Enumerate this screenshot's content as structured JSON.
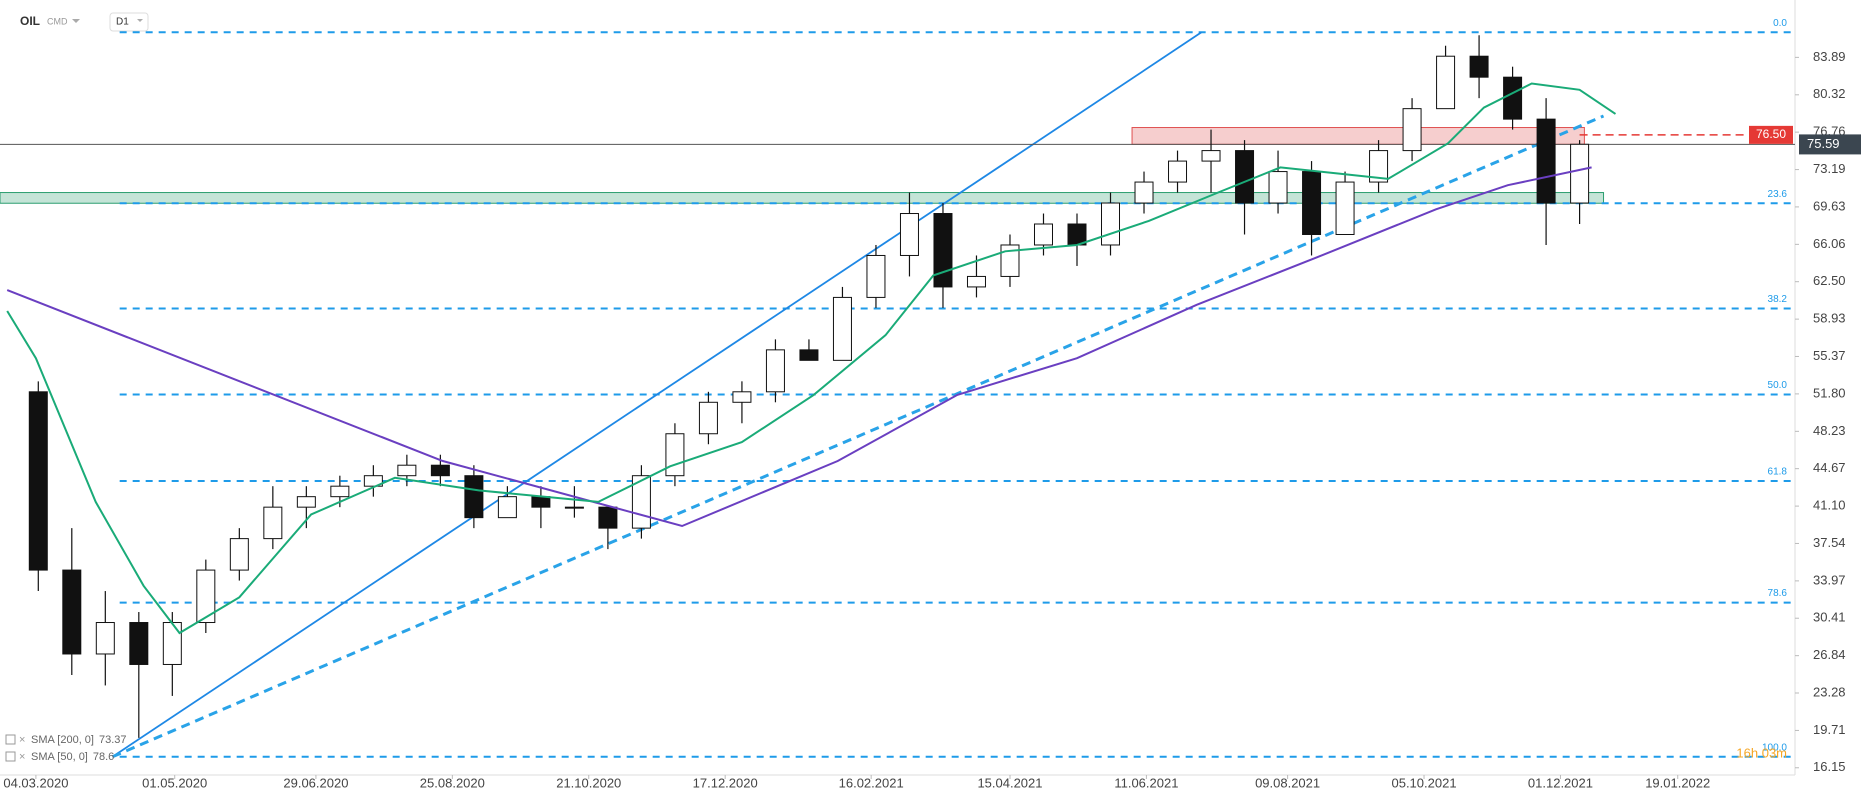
{
  "chart_data": {
    "type": "candlestick",
    "symbol": "OIL",
    "market": "CMD",
    "interval": "D1",
    "countdown": "16h 03m",
    "x": [
      "05.03.2020",
      "19.03.2020",
      "02.04.2020",
      "16.04.2020",
      "30.04.2020",
      "14.05.2020",
      "28.05.2020",
      "11.06.2020",
      "25.06.2020",
      "09.07.2020",
      "23.07.2020",
      "06.08.2020",
      "20.08.2020",
      "03.09.2020",
      "17.09.2020",
      "01.10.2020",
      "15.10.2020",
      "29.10.2020",
      "12.11.2020",
      "26.11.2020",
      "10.12.2020",
      "24.12.2020",
      "07.01.2021",
      "21.01.2021",
      "04.02.2021",
      "18.02.2021",
      "04.03.2021",
      "18.03.2021",
      "01.04.2021",
      "15.04.2021",
      "29.04.2021",
      "13.05.2021",
      "27.05.2021",
      "10.06.2021",
      "24.06.2021",
      "08.07.2021",
      "22.07.2021",
      "05.08.2021",
      "19.08.2021",
      "02.09.2021",
      "16.09.2021",
      "30.09.2021",
      "14.10.2021",
      "28.10.2021",
      "11.11.2021",
      "25.11.2021",
      "09.12.2021"
    ],
    "open": [
      52,
      35,
      27,
      30,
      26,
      30,
      35,
      38,
      41,
      42,
      43,
      44,
      45,
      44,
      40,
      42,
      41,
      41,
      39,
      44,
      48,
      51,
      52,
      56,
      55,
      61,
      65,
      69,
      62,
      63,
      66,
      68,
      66,
      70,
      72,
      74,
      75,
      70,
      73,
      67,
      72,
      75,
      79,
      84,
      82,
      78,
      70
    ],
    "high": [
      53,
      39,
      33,
      31,
      31,
      36,
      39,
      43,
      43,
      44,
      45,
      46,
      46,
      45,
      43,
      43,
      43,
      41,
      45,
      49,
      52,
      53,
      57,
      57,
      62,
      66,
      71,
      70,
      65,
      67,
      69,
      69,
      71,
      73,
      75,
      77,
      76,
      75,
      74,
      73,
      76,
      80,
      85,
      86,
      83,
      80,
      76
    ],
    "low": [
      33,
      25,
      24,
      19,
      23,
      29,
      34,
      37,
      39,
      41,
      42,
      43,
      43,
      39,
      40,
      39,
      40,
      37,
      38,
      43,
      47,
      49,
      51,
      55,
      55,
      60,
      63,
      60,
      61,
      62,
      65,
      64,
      65,
      69,
      71,
      71,
      67,
      69,
      65,
      67,
      71,
      74,
      79,
      80,
      77,
      66,
      68
    ],
    "close": [
      35,
      27,
      30,
      26,
      30,
      35,
      38,
      41,
      42,
      43,
      44,
      45,
      44,
      40,
      42,
      41,
      41,
      39,
      44,
      48,
      51,
      52,
      56,
      55,
      61,
      65,
      69,
      62,
      63,
      66,
      68,
      66,
      70,
      72,
      74,
      75,
      70,
      73,
      67,
      72,
      75,
      79,
      84,
      82,
      78,
      70,
      75.6
    ],
    "up_color": "#ffffff",
    "down_color": "#111111",
    "series": [
      {
        "name": "SMA [200, 0]",
        "last": 73.37,
        "color": "#6a3fc1",
        "x": [
          "21.02.2020",
          "21.08.2020",
          "29.11.2020",
          "02.02.2021",
          "24.03.2021",
          "13.05.2021",
          "02.07.2021",
          "21.08.2021",
          "10.10.2021",
          "09.11.2021",
          "14.12.2021"
        ],
        "values": [
          61.7,
          45.4,
          39.2,
          45.4,
          51.7,
          55.2,
          60.3,
          64.8,
          69.4,
          71.7,
          73.4
        ]
      },
      {
        "name": "SMA [50, 0]",
        "last": 78.6,
        "color": "#1aab78",
        "x": [
          "21.02.2020",
          "04.03.2020",
          "29.03.2020",
          "18.04.2020",
          "03.05.2020",
          "28.05.2020",
          "27.06.2020",
          "01.08.2020",
          "05.09.2020",
          "25.10.2020",
          "24.11.2020",
          "24.12.2020",
          "23.01.2021",
          "22.02.2021",
          "14.03.2021",
          "13.04.2021",
          "13.05.2021",
          "12.06.2021",
          "12.07.2021",
          "06.08.2021",
          "31.08.2021",
          "20.09.2021",
          "15.10.2021",
          "30.10.2021",
          "19.11.2021",
          "09.12.2021",
          "24.12.2021"
        ],
        "values": [
          59.7,
          55.2,
          41.5,
          33.5,
          29.0,
          32.4,
          40.3,
          43.8,
          42.6,
          41.5,
          44.9,
          47.2,
          51.7,
          57.4,
          63.1,
          65.4,
          66.0,
          68.3,
          71.1,
          73.4,
          72.8,
          72.3,
          75.7,
          79.1,
          81.4,
          80.8,
          78.5
        ]
      }
    ],
    "fib_levels": [
      {
        "label": "0.0",
        "value": 86.28
      },
      {
        "label": "23.6",
        "value": 69.98
      },
      {
        "label": "38.2",
        "value": 59.94
      },
      {
        "label": "50.0",
        "value": 51.74
      },
      {
        "label": "61.8",
        "value": 43.5
      },
      {
        "label": "78.6",
        "value": 31.9
      },
      {
        "label": "100.0",
        "value": 17.2
      }
    ],
    "fib_start": "08.04.2020",
    "trendlines": [
      {
        "style": "solid",
        "x": [
          "05.04.2020",
          "04.07.2021"
        ],
        "values": [
          17.2,
          86.28
        ]
      },
      {
        "style": "dashed",
        "x": [
          "05.04.2020",
          "19.12.2021"
        ],
        "values": [
          17.2,
          78.3
        ]
      }
    ],
    "zones": [
      {
        "color": "#e05050",
        "x": [
          "05.06.2021",
          "11.12.2021"
        ],
        "values": [
          75.6,
          77.2
        ]
      },
      {
        "color": "#2a9d6e",
        "x": [
          "18.02.2020",
          "19.12.2021"
        ],
        "values": [
          69.98,
          71.0
        ]
      }
    ],
    "alert": {
      "value": 76.5,
      "label": "76.50",
      "from": "09.12.2021",
      "color": "#e53935"
    },
    "last_price": 75.59,
    "xlim": [
      "18.02.2020",
      "09.03.2022"
    ],
    "ylim": [
      15.46,
      89.36
    ],
    "xticks": [
      "04.03.2020",
      "01.05.2020",
      "29.06.2020",
      "25.08.2020",
      "21.10.2020",
      "17.12.2020",
      "16.02.2021",
      "15.04.2021",
      "11.06.2021",
      "09.08.2021",
      "05.10.2021",
      "01.12.2021",
      "19.01.2022"
    ],
    "yticks": [
      16.15,
      19.71,
      23.28,
      26.84,
      30.41,
      33.97,
      37.54,
      {
        "value": 41.1,
        "label": "41.10"
      },
      44.67,
      48.23,
      {
        "value": 51.8,
        "label": "51.80"
      },
      55.37,
      58.93,
      {
        "value": 62.5,
        "label": "62.50"
      },
      66.06,
      69.63,
      73.19,
      76.76,
      80.32,
      83.89
    ]
  }
}
